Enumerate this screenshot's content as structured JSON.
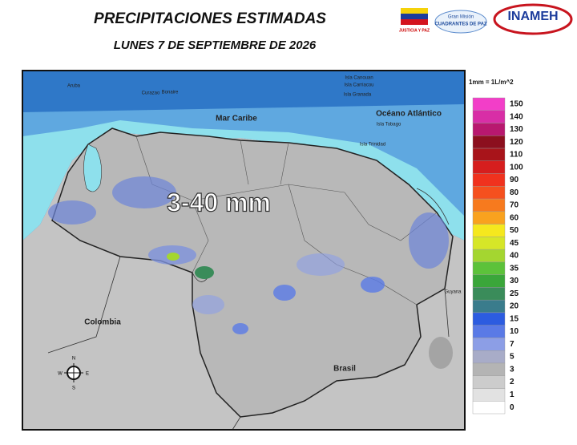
{
  "header": {
    "title": "PRECIPITACIONES ESTIMADAS",
    "subtitle": "LUNES 7 DE SEPTIEMBRE DE 2026"
  },
  "logos": {
    "ministry": "JUSTICIA Y PAZ",
    "mission_top": "Gran Misión",
    "mission": "CUADRANTES DE PAZ",
    "institute": "INAMEH"
  },
  "map": {
    "sea1": "Mar Caribe",
    "sea2": "Océano Atlántico",
    "islands": [
      "Aruba",
      "Curazao",
      "Bonaire",
      "Isla Canouan",
      "Isla Carriacou",
      "Isla Granada",
      "Isla Tobago",
      "Isla Trinidad"
    ],
    "countries": [
      "Colombia",
      "Brasil",
      "Guyana"
    ],
    "annotation": "3-40 mm",
    "compass": [
      "N",
      "S",
      "E",
      "W"
    ]
  },
  "legend": {
    "title": "1mm = 1L/m^2",
    "levels": [
      {
        "label": 150,
        "color": "#f23ec8"
      },
      {
        "label": 140,
        "color": "#d82ea6"
      },
      {
        "label": 130,
        "color": "#b8186f"
      },
      {
        "label": 120,
        "color": "#8c0f1e"
      },
      {
        "label": 110,
        "color": "#a8141a"
      },
      {
        "label": 100,
        "color": "#d61e1e"
      },
      {
        "label": 90,
        "color": "#f0321e"
      },
      {
        "label": 80,
        "color": "#f5501e"
      },
      {
        "label": 70,
        "color": "#f77a1e"
      },
      {
        "label": 60,
        "color": "#f9a21e"
      },
      {
        "label": 50,
        "color": "#f5e81e"
      },
      {
        "label": 45,
        "color": "#d6e628"
      },
      {
        "label": 40,
        "color": "#a4d630"
      },
      {
        "label": 35,
        "color": "#5cc23a"
      },
      {
        "label": 30,
        "color": "#3aa63a"
      },
      {
        "label": 25,
        "color": "#3a8c5a"
      },
      {
        "label": 20,
        "color": "#3a7c8c"
      },
      {
        "label": 15,
        "color": "#2c5ce0"
      },
      {
        "label": 10,
        "color": "#5a7ae6"
      },
      {
        "label": 7,
        "color": "#8c9ee6"
      },
      {
        "label": 5,
        "color": "#a8acc8"
      },
      {
        "label": 3,
        "color": "#b4b4b4"
      },
      {
        "label": 2,
        "color": "#cccccc"
      },
      {
        "label": 1,
        "color": "#e2e2e2"
      },
      {
        "label": 0,
        "color": "#ffffff"
      }
    ]
  }
}
